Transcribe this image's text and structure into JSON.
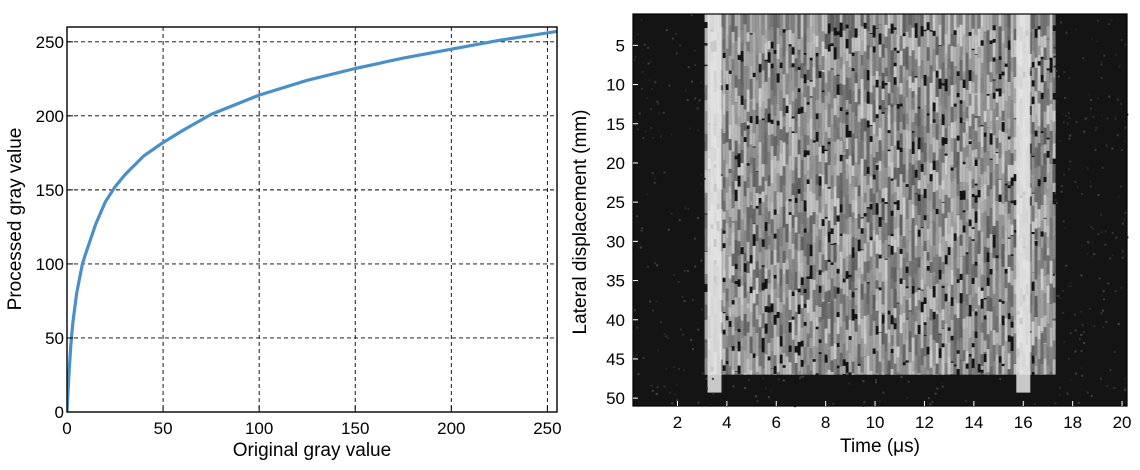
{
  "chart_data": [
    {
      "type": "line",
      "xlabel": "Original gray value",
      "ylabel": "Processed gray value",
      "xlim": [
        0,
        255
      ],
      "ylim": [
        0,
        260
      ],
      "xticks": [
        "0",
        "50",
        "100",
        "150",
        "200",
        "250"
      ],
      "yticks": [
        "0",
        "50",
        "100",
        "150",
        "200",
        "250"
      ],
      "grid": true,
      "grid_style": "dashed",
      "line_color": "#4a90c8",
      "series": [
        {
          "x": [
            0,
            1,
            2,
            3,
            5,
            8,
            10,
            15,
            20,
            25,
            30,
            40,
            50,
            60,
            75,
            100,
            125,
            150,
            175,
            200,
            225,
            255
          ],
          "values": [
            0,
            25,
            45,
            60,
            80,
            100,
            108,
            127,
            142,
            152,
            160,
            173,
            182,
            190,
            201,
            214,
            224,
            232,
            239,
            245,
            251,
            257
          ]
        }
      ]
    },
    {
      "type": "heatmap",
      "colormap": "grayscale",
      "xlabel": "Time (μs)",
      "ylabel": "Lateral displacement (mm)",
      "xlim": [
        0.2,
        20.2
      ],
      "ylim": [
        51,
        1
      ],
      "xticks": [
        "2",
        "4",
        "6",
        "8",
        "10",
        "12",
        "14",
        "16",
        "18",
        "20"
      ],
      "yticks": [
        "5",
        "10",
        "15",
        "20",
        "25",
        "30",
        "35",
        "40",
        "45",
        "50"
      ],
      "bright_region": {
        "time_start": 3.1,
        "time_end": 17.2,
        "disp_start": 1,
        "disp_end": 47
      },
      "bright_bands_time": [
        3.5,
        16.0
      ]
    }
  ]
}
